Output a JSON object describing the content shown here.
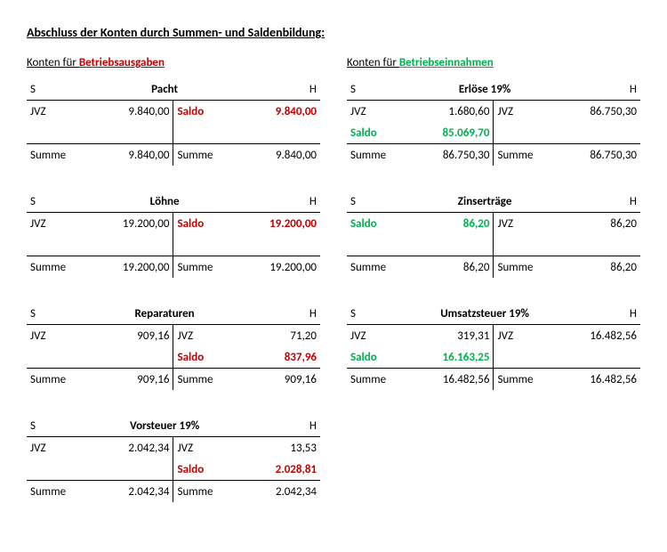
{
  "title": "Abschluss der Konten durch Summen- und Saldenbildung:",
  "left_heading_prefix": "Konten für ",
  "left_heading_em": "Betriebsausgaben",
  "right_heading_prefix": "Konten für ",
  "right_heading_em": "Betriebseinnahmen",
  "labels": {
    "S": "S",
    "H": "H",
    "JVZ": "JVZ",
    "Saldo": "Saldo",
    "Summe": "Summe"
  },
  "colors": {
    "red": "#c00000",
    "green": "#00b050",
    "black": "#000000",
    "bg": "#ffffff"
  },
  "fonts": {
    "base_size_pt": 10,
    "title_size_pt": 11,
    "family": "Calibri"
  },
  "accounts_left": [
    {
      "name": "Pacht",
      "rows": [
        {
          "s_label": "JVZ",
          "s_val": "9.840,00",
          "h_label": "Saldo",
          "h_val": "9.840,00",
          "h_color": "red"
        }
      ],
      "sum": {
        "s_val": "9.840,00",
        "h_val": "9.840,00"
      }
    },
    {
      "name": "Löhne",
      "rows": [
        {
          "s_label": "JVZ",
          "s_val": "19.200,00",
          "h_label": "Saldo",
          "h_val": "19.200,00",
          "h_color": "red"
        }
      ],
      "sum": {
        "s_val": "19.200,00",
        "h_val": "19.200,00"
      }
    },
    {
      "name": "Reparaturen",
      "rows": [
        {
          "s_label": "JVZ",
          "s_val": "909,16",
          "h_label": "JVZ",
          "h_val": "71,20",
          "h_color": "black"
        },
        {
          "s_label": "",
          "s_val": "",
          "h_label": "Saldo",
          "h_val": "837,96",
          "h_color": "red"
        }
      ],
      "sum": {
        "s_val": "909,16",
        "h_val": "909,16"
      }
    },
    {
      "name": "Vorsteuer 19%",
      "rows": [
        {
          "s_label": "JVZ",
          "s_val": "2.042,34",
          "h_label": "JVZ",
          "h_val": "13,53",
          "h_color": "black"
        },
        {
          "s_label": "",
          "s_val": "",
          "h_label": "Saldo",
          "h_val": "2.028,81",
          "h_color": "red"
        }
      ],
      "sum": {
        "s_val": "2.042,34",
        "h_val": "2.042,34"
      }
    }
  ],
  "accounts_right": [
    {
      "name": "Erlöse 19%",
      "rows": [
        {
          "s_label": "JVZ",
          "s_val": "1.680,60",
          "s_color": "black",
          "h_label": "JVZ",
          "h_val": "86.750,30"
        },
        {
          "s_label": "Saldo",
          "s_val": "85.069,70",
          "s_color": "green",
          "h_label": "",
          "h_val": ""
        }
      ],
      "sum": {
        "s_val": "86.750,30",
        "h_val": "86.750,30"
      }
    },
    {
      "name": "Zinserträge",
      "rows": [
        {
          "s_label": "Saldo",
          "s_val": "86,20",
          "s_color": "green",
          "h_label": "JVZ",
          "h_val": "86,20"
        }
      ],
      "sum": {
        "s_val": "86,20",
        "h_val": "86,20"
      }
    },
    {
      "name": "Umsatzsteuer 19%",
      "rows": [
        {
          "s_label": "JVZ",
          "s_val": "319,31",
          "s_color": "black",
          "h_label": "JVZ",
          "h_val": "16.482,56"
        },
        {
          "s_label": "Saldo",
          "s_val": "16.163,25",
          "s_color": "green",
          "h_label": "",
          "h_val": ""
        }
      ],
      "sum": {
        "s_val": "16.482,56",
        "h_val": "16.482,56"
      }
    }
  ]
}
